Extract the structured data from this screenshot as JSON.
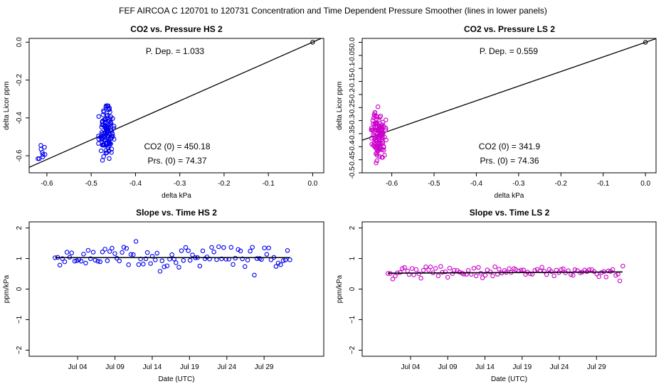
{
  "figure": {
    "suptitle": "FEF   AIRCOA C   120701 to 120731   Concentration and Time Dependent Pressure Smoother (lines in lower panels)"
  },
  "colors": {
    "hs": "#0000ee",
    "ls": "#cc00cc",
    "line": "#000000"
  },
  "chart_data": [
    {
      "id": "p1",
      "type": "scatter",
      "title": "CO2 vs. Pressure HS 2",
      "xlabel": "delta kPa",
      "ylabel": "delta Licor ppm",
      "xlim": [
        -0.64,
        0.025
      ],
      "ylim": [
        -0.69,
        0.02
      ],
      "xticks": [
        -0.6,
        -0.5,
        -0.4,
        -0.3,
        -0.2,
        -0.1,
        0.0
      ],
      "xtick_labels": [
        "-0.6",
        "-0.5",
        "-0.4",
        "-0.3",
        "-0.2",
        "-0.1",
        "0.0"
      ],
      "yticks": [
        0.0,
        -0.2,
        -0.4,
        -0.6
      ],
      "ytick_labels": [
        "0.0",
        "-0.2",
        "-0.4",
        "-0.6"
      ],
      "annotations": [
        "P. Dep. =  1.033",
        "CO2 (0) =  450.18",
        "Prs. (0) =  74.37"
      ],
      "fit_line": {
        "x": [
          -0.64,
          0.025
        ],
        "y": [
          -0.661,
          0.026
        ]
      },
      "reference_point": {
        "x": 0.0,
        "y": 0.0
      },
      "clusters": [
        {
          "cx": -0.612,
          "cy": -0.59,
          "sx": 0.006,
          "sy": 0.035,
          "n": 9,
          "seed": 11
        },
        {
          "cx": -0.466,
          "cy": -0.48,
          "sx": 0.008,
          "sy": 0.06,
          "n": 110,
          "seed": 23
        }
      ]
    },
    {
      "id": "p2",
      "type": "scatter",
      "title": "CO2 vs. Pressure LS 2",
      "xlabel": "delta kPa",
      "ylabel": "delta Licor ppm",
      "xlim": [
        -0.67,
        0.025
      ],
      "ylim": [
        -0.5,
        0.015
      ],
      "xticks": [
        -0.6,
        -0.5,
        -0.4,
        -0.3,
        -0.2,
        -0.1,
        0.0
      ],
      "xtick_labels": [
        "-0.6",
        "-0.5",
        "-0.4",
        "-0.3",
        "-0.2",
        "-0.1",
        "0.0"
      ],
      "yticks": [
        0.0,
        -0.05,
        -0.1,
        -0.15,
        -0.2,
        -0.25,
        -0.3,
        -0.35,
        -0.4,
        -0.45,
        -0.5
      ],
      "ytick_labels": [
        "0.0",
        "-0.05",
        "-0.1",
        "-0.15",
        "-0.2",
        "-0.25",
        "-0.3",
        "-0.35",
        "-0.4",
        "-0.45",
        "-0.5"
      ],
      "annotations": [
        "P. Dep. =  0.559",
        "CO2 (0) =  341.9",
        "Prs. (0) =  74.36"
      ],
      "fit_line": {
        "x": [
          -0.67,
          0.025
        ],
        "y": [
          -0.375,
          0.014
        ]
      },
      "reference_point": {
        "x": 0.0,
        "y": 0.0
      },
      "clusters": [
        {
          "cx": -0.631,
          "cy": -0.355,
          "sx": 0.008,
          "sy": 0.045,
          "n": 120,
          "seed": 37
        }
      ]
    },
    {
      "id": "p3",
      "type": "scatter",
      "title": "Slope vs. Time HS 2",
      "xlabel": "Date (UTC)",
      "ylabel": "ppm/kPa",
      "xlim": [
        -3.5,
        36
      ],
      "ylim": [
        -2.2,
        2.2
      ],
      "xticks": [
        3,
        8,
        13,
        18,
        23,
        28
      ],
      "xtick_labels": [
        "Jul 04",
        "Jul 09",
        "Jul 14",
        "Jul 19",
        "Jul 24",
        "Jul 29"
      ],
      "yticks": [
        -2,
        -1,
        0,
        1,
        2
      ],
      "ytick_labels": [
        "−2",
        "−1",
        "0",
        "1",
        "2"
      ],
      "smooth_line": {
        "x": [
          0,
          31.5
        ],
        "y": [
          1.03,
          1.03
        ]
      },
      "series": {
        "x0": 0,
        "x1": 31.5,
        "n": 100,
        "center": 1.03,
        "spread": 0.18,
        "seed": 51
      }
    },
    {
      "id": "p4",
      "type": "scatter",
      "title": "Slope vs. Time LS 2",
      "xlabel": "Date (UTC)",
      "ylabel": "ppm/kPa",
      "xlim": [
        -3.5,
        36
      ],
      "ylim": [
        -2.2,
        2.2
      ],
      "xticks": [
        3,
        8,
        13,
        18,
        23,
        28
      ],
      "xtick_labels": [
        "Jul 04",
        "Jul 09",
        "Jul 14",
        "Jul 19",
        "Jul 24",
        "Jul 29"
      ],
      "yticks": [
        -2,
        -1,
        0,
        1,
        2
      ],
      "ytick_labels": [
        "−2",
        "−1",
        "0",
        "1",
        "2"
      ],
      "smooth_line": {
        "x": [
          0,
          31.5
        ],
        "y": [
          0.52,
          0.56
        ]
      },
      "series": {
        "x0": 0,
        "x1": 31.5,
        "n": 100,
        "center": 0.56,
        "spread": 0.1,
        "seed": 67
      }
    }
  ]
}
